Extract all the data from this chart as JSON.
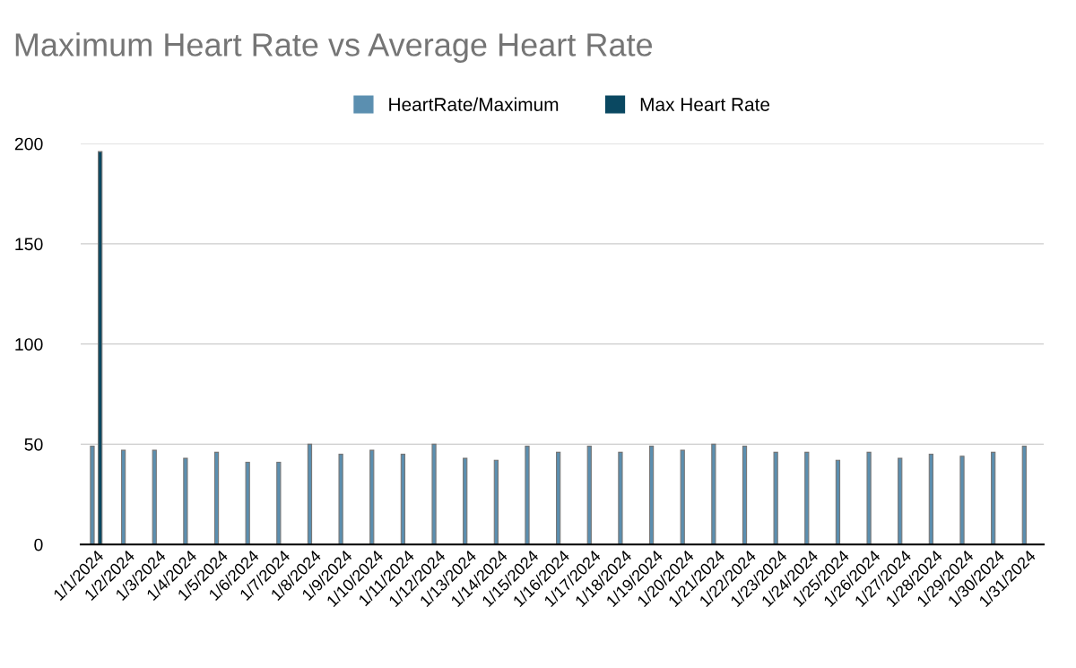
{
  "chart_data": {
    "type": "bar",
    "title": "Maximum Heart Rate vs Average Heart Rate",
    "categories": [
      "1/1/2024",
      "1/2/2024",
      "1/3/2024",
      "1/4/2024",
      "1/5/2024",
      "1/6/2024",
      "1/7/2024",
      "1/8/2024",
      "1/9/2024",
      "1/10/2024",
      "1/11/2024",
      "1/12/2024",
      "1/13/2024",
      "1/14/2024",
      "1/15/2024",
      "1/16/2024",
      "1/17/2024",
      "1/18/2024",
      "1/19/2024",
      "1/20/2024",
      "1/21/2024",
      "1/22/2024",
      "1/23/2024",
      "1/24/2024",
      "1/25/2024",
      "1/26/2024",
      "1/27/2024",
      "1/28/2024",
      "1/29/2024",
      "1/30/2024",
      "1/31/2024"
    ],
    "series": [
      {
        "name": "HeartRate/Maximum",
        "color": "#5b8fb0",
        "values": [
          49,
          47,
          47,
          43,
          46,
          41,
          41,
          50,
          45,
          47,
          45,
          50,
          43,
          42,
          49,
          46,
          49,
          46,
          49,
          47,
          50,
          49,
          46,
          46,
          42,
          46,
          43,
          45,
          44,
          46,
          49
        ]
      },
      {
        "name": "Max Heart Rate",
        "color": "#0a4861",
        "values": [
          196,
          null,
          null,
          null,
          null,
          null,
          null,
          null,
          null,
          null,
          null,
          null,
          null,
          null,
          null,
          null,
          null,
          null,
          null,
          null,
          null,
          null,
          null,
          null,
          null,
          null,
          null,
          null,
          null,
          null,
          null
        ]
      }
    ],
    "ylim": [
      0,
      200
    ],
    "yticks": [
      0,
      50,
      100,
      150,
      200
    ],
    "grid": "y",
    "legend": "top"
  }
}
